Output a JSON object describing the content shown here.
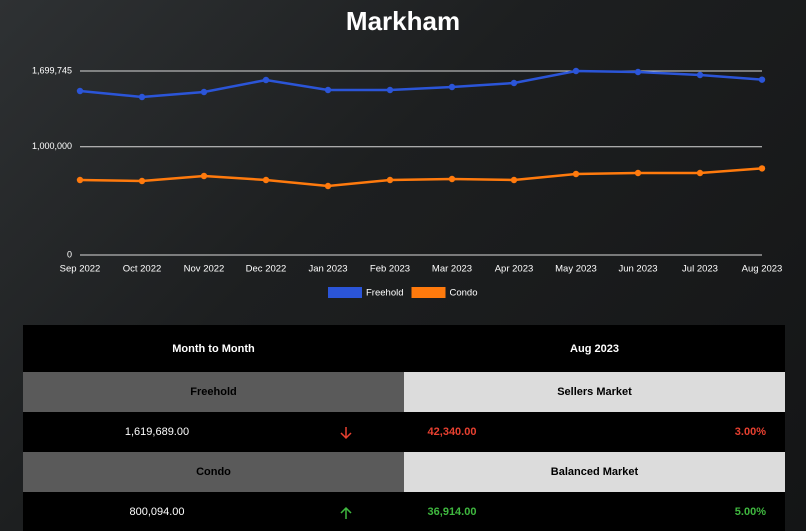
{
  "chart_data": {
    "type": "line",
    "title": "Markham",
    "categories": [
      "Sep 2022",
      "Oct 2022",
      "Nov 2022",
      "Dec 2022",
      "Jan 2023",
      "Feb 2023",
      "Mar 2023",
      "Apr 2023",
      "May 2023",
      "Jun 2023",
      "Jul 2023",
      "Aug 2023"
    ],
    "series": [
      {
        "name": "Freehold",
        "color": "#2b55d8",
        "values": [
          1515000,
          1459600,
          1505700,
          1616600,
          1524200,
          1524200,
          1551900,
          1588900,
          1699745,
          1690500,
          1662800,
          1619689
        ]
      },
      {
        "name": "Condo",
        "color": "#ff7a0d",
        "values": [
          692800,
          683600,
          729800,
          692800,
          637400,
          692800,
          702000,
          692800,
          748300,
          757500,
          757500,
          800094
        ]
      }
    ],
    "ylim": [
      0,
      1699745
    ],
    "yticks": [
      0,
      {
        "value": 1000000,
        "label": "1,000,000"
      },
      {
        "value": 1699745,
        "label": "1,699,745"
      }
    ],
    "grid": true,
    "legend": "bottom"
  },
  "table": {
    "header": [
      "Month to Month",
      "Aug 2023"
    ],
    "rows": [
      {
        "type": "Freehold",
        "market": "Sellers Market",
        "price": "1,619,689.00",
        "change": "42,340.00",
        "percent": "3.00%"
      },
      {
        "type": "Condo",
        "market": "Balanced Market",
        "price": "800,094.00",
        "change": "36,914.00",
        "percent": "5.00%"
      }
    ]
  }
}
